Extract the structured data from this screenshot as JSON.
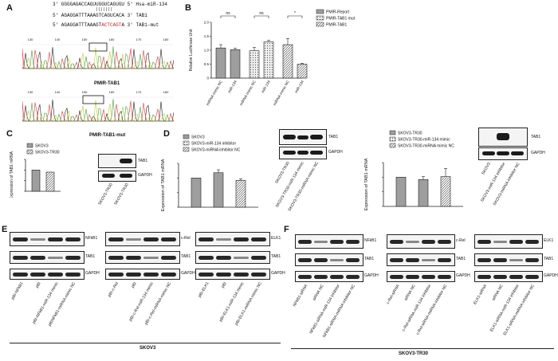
{
  "panels": {
    "A": "A",
    "B": "B",
    "C": "C",
    "D": "D",
    "E": "E",
    "F": "F"
  },
  "panelA": {
    "seq1": "3'  GGGGAGACCAGUUGGUCAGUGU",
    "seq1_name": "5' Hsa-miR-134",
    "seq2": "5'  AGAGGATTTAAAGTCAGUCACA",
    "seq2_name": "3' TAB1",
    "seq3_left": "5'  AGAGGATTTAAAGT",
    "seq3_mut": "ACTCAGT",
    "seq3_right": "A",
    "seq3_name": "3' TAB1-mut",
    "trace1_label": "PMIR-TAB1",
    "trace2_label": "PMIR-TAB1-mut",
    "ticks": [
      "130",
      "140",
      "150",
      "160",
      "170",
      "180"
    ]
  },
  "chartB": {
    "type": "bar",
    "ylabel": "Relative Luciferase Unit",
    "ylim": [
      0,
      2.0
    ],
    "yticks": [
      "0",
      "0.5",
      "1.0",
      "1.5",
      "2.0"
    ],
    "legend": [
      "PMIR-Report",
      "PMIR-TAB1 mut",
      "PMIR-TAB1"
    ],
    "categories": [
      "miRNA mimic NC",
      "miR-134",
      "miRNA mimic NC",
      "miR-134",
      "miRNA mimic NC",
      "miR-134"
    ],
    "values": [
      1.08,
      1.02,
      0.98,
      1.3,
      1.2,
      0.5
    ],
    "errors": [
      0.12,
      0.05,
      0.12,
      0.05,
      0.22,
      0.03
    ],
    "groups": [
      0,
      0,
      1,
      1,
      2,
      2
    ],
    "sig": [
      "ns",
      "ns",
      "*"
    ]
  },
  "chartC": {
    "type": "bar",
    "ylabel": "Expression of TAB1 mRNA",
    "legend": [
      "SKOV3",
      "SKOV3-TR30"
    ],
    "categories": [
      "SKOV3",
      "SKOV3-TR30"
    ],
    "values": [
      1.0,
      0.9
    ],
    "ylim": [
      0,
      1.5
    ]
  },
  "blotC": {
    "rows": [
      "TAB1",
      "GAPDH"
    ],
    "lanes": [
      "SKOV3-TR30",
      "SKOV3-TR30"
    ]
  },
  "chartD1": {
    "type": "bar",
    "ylabel": "Expression of TAB1 mRNA",
    "legend": [
      "SKOV3",
      "SKOV3-miR-134 inhibitor",
      "SKOV3-miRNA inhibitor NC"
    ],
    "values": [
      1.0,
      1.18,
      0.92
    ],
    "errors": [
      0.0,
      0.1,
      0.05
    ],
    "ylim": [
      0,
      1.5
    ]
  },
  "blotD1": {
    "rows": [
      "TAB1",
      "GAPDH"
    ],
    "lanes": [
      "SKOV3-TR30",
      "SKOV3-TR30-miR-134 mimic",
      "SKOV3-TR30-miRNA mimic NC"
    ]
  },
  "chartD2": {
    "type": "bar",
    "ylabel": "Expression of TAB1 mRNA",
    "legend": [
      "SKOV3-TR30",
      "SKOV3-TR30-miR-134 mimic",
      "SKOV3-TR30-miRNA mimic NC"
    ],
    "values": [
      1.0,
      0.92,
      1.02
    ],
    "errors": [
      0.0,
      0.1,
      0.28
    ],
    "ylim": [
      0,
      1.5
    ]
  },
  "blotD2": {
    "rows": [
      "TAB1",
      "GAPDH"
    ],
    "lanes": [
      "SKOV3",
      "SKOV3-miR-134 inhibitor",
      "SKOV3-miRNA inhibitor NC"
    ]
  },
  "panelE": {
    "group_label": "SKOV3",
    "blots": [
      {
        "rows": [
          "NFkB1",
          "TAB1",
          "GAPDH"
        ],
        "lanes": [
          "pBI-NFkB1",
          "pBI",
          "pBI-NFkB1-miR-134 mimic",
          "pBINFkB1-miRNA mimic NC"
        ]
      },
      {
        "rows": [
          "c-Rel",
          "TAB1",
          "GAPDH"
        ],
        "lanes": [
          "pBI-c-Rel",
          "pBI",
          "pBI-c-Rel-miR-134 mimic",
          "pBI-c-Rel-miRNA mimic NC"
        ]
      },
      {
        "rows": [
          "ELK1",
          "TAB1",
          "GAPDH"
        ],
        "lanes": [
          "pBI-ELK1",
          "pBI",
          "pBI-ELK1-miR-134 mimic",
          "pBI-ELK1-miRNA mimic NC"
        ]
      }
    ]
  },
  "panelF": {
    "group_label": "SKOV3-TR30",
    "blots": [
      {
        "rows": [
          "NFkB1",
          "TAB1",
          "GAPDH"
        ],
        "lanes": [
          "NFkB1-siRNA",
          "siRNA NC",
          "NFkB1-siRNA-miR-134 inhibitor",
          "NFkB1-siRNA-miRNA inhibitor NC"
        ]
      },
      {
        "rows": [
          "c-Rel",
          "TAB1",
          "GAPDH"
        ],
        "lanes": [
          "c-Rel-siRNA",
          "siRNA NC",
          "c-Rel-siRNA-miR-134 inhibitor",
          "c-Rel-siRNA-miRNA inhibitor NC"
        ]
      },
      {
        "rows": [
          "ELK1",
          "TAB1",
          "GAPDH"
        ],
        "lanes": [
          "ELK1-siRNA",
          "siRNA NC",
          "ELK1-siRNA-miR-134 inhibitor",
          "ELK1-siRNA-miRNA inhibitor NC"
        ]
      }
    ]
  }
}
